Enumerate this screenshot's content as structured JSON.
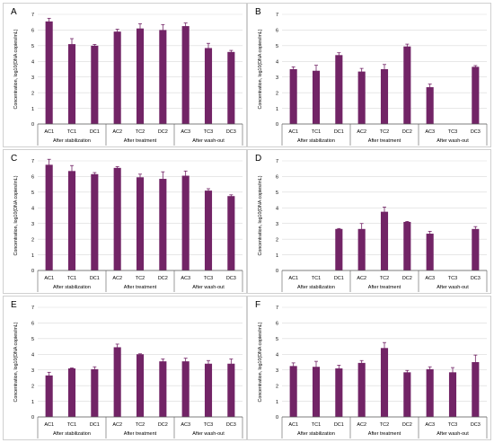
{
  "colors": {
    "bar": "#722466",
    "grid": "#d9d9d9",
    "axis": "#595959",
    "text": "#000000",
    "panel_border": "#d0d0d0"
  },
  "chart_data": [
    {
      "panel_label": "A",
      "type": "bar",
      "categories": [
        "AC1",
        "TC1",
        "DC1",
        "AC2",
        "TC2",
        "DC2",
        "AC3",
        "TC3",
        "DC3"
      ],
      "values": [
        6.55,
        5.1,
        5.0,
        5.9,
        6.1,
        6.0,
        6.25,
        4.85,
        4.6
      ],
      "errors": [
        0.2,
        0.35,
        0.08,
        0.15,
        0.3,
        0.35,
        0.2,
        0.3,
        0.1
      ],
      "groups": [
        "After stabilization",
        "After treatment",
        "After wash-out"
      ],
      "ylabel": "Concentration, log10(DNA copies/mL)",
      "ylim": [
        0,
        7
      ],
      "yticks": [
        0,
        1,
        2,
        3,
        4,
        5,
        6,
        7
      ],
      "grid": true,
      "legend": "none"
    },
    {
      "panel_label": "B",
      "type": "bar",
      "categories": [
        "AC1",
        "TC1",
        "DC1",
        "AC2",
        "TC2",
        "DC2",
        "AC3",
        "TC3",
        "DC3"
      ],
      "values": [
        3.5,
        3.4,
        4.4,
        3.35,
        3.5,
        4.95,
        2.35,
        null,
        3.65
      ],
      "errors": [
        0.15,
        0.35,
        0.15,
        0.2,
        0.3,
        0.15,
        0.2,
        null,
        0.08
      ],
      "groups": [
        "After stabilization",
        "After treatment",
        "After wash-out"
      ],
      "ylabel": "Concentration, log10(DNA copies/mL)",
      "ylim": [
        0,
        7
      ],
      "yticks": [
        0,
        1,
        2,
        3,
        4,
        5,
        6,
        7
      ],
      "grid": true,
      "legend": "none"
    },
    {
      "panel_label": "C",
      "type": "bar",
      "categories": [
        "AC1",
        "TC1",
        "DC1",
        "AC2",
        "TC2",
        "DC2",
        "AC3",
        "TC3",
        "DC3"
      ],
      "values": [
        6.75,
        6.35,
        6.15,
        6.55,
        5.95,
        5.85,
        6.05,
        5.1,
        4.75
      ],
      "errors": [
        0.35,
        0.35,
        0.1,
        0.08,
        0.2,
        0.45,
        0.3,
        0.12,
        0.08
      ],
      "groups": [
        "After stabilization",
        "After treatment",
        "After wash-out"
      ],
      "ylabel": "Concentration, log10(DNA copies/mL)",
      "ylim": [
        0,
        7
      ],
      "yticks": [
        0,
        1,
        2,
        3,
        4,
        5,
        6,
        7
      ],
      "grid": true,
      "legend": "none"
    },
    {
      "panel_label": "D",
      "type": "bar",
      "categories": [
        "AC1",
        "TC1",
        "DC1",
        "AC2",
        "TC2",
        "DC2",
        "AC3",
        "TC3",
        "DC3"
      ],
      "values": [
        null,
        null,
        2.65,
        2.65,
        3.75,
        3.1,
        2.35,
        null,
        2.65
      ],
      "errors": [
        null,
        null,
        0.03,
        0.35,
        0.3,
        0.03,
        0.15,
        null,
        0.15
      ],
      "groups": [
        "After stabilization",
        "After treatment",
        "After wash-out"
      ],
      "ylabel": "Concentration, log10(DNA copies/mL)",
      "ylim": [
        0,
        7
      ],
      "yticks": [
        0,
        1,
        2,
        3,
        4,
        5,
        6,
        7
      ],
      "grid": true,
      "legend": "none"
    },
    {
      "panel_label": "E",
      "type": "bar",
      "categories": [
        "AC1",
        "TC1",
        "DC1",
        "AC2",
        "TC2",
        "DC2",
        "AC3",
        "TC3",
        "DC3"
      ],
      "values": [
        2.65,
        3.1,
        3.05,
        4.45,
        4.0,
        3.55,
        3.55,
        3.4,
        3.4
      ],
      "errors": [
        0.2,
        0.03,
        0.15,
        0.2,
        0.03,
        0.15,
        0.2,
        0.2,
        0.3
      ],
      "groups": [
        "After stabilization",
        "After treatment",
        "After wash-out"
      ],
      "ylabel": "Concentration, log10(DNA copies/mL)",
      "ylim": [
        0,
        7
      ],
      "yticks": [
        0,
        1,
        2,
        3,
        4,
        5,
        6,
        7
      ],
      "grid": true,
      "legend": "none"
    },
    {
      "panel_label": "F",
      "type": "bar",
      "categories": [
        "AC1",
        "TC1",
        "DC1",
        "AC2",
        "TC2",
        "DC2",
        "AC3",
        "TC3",
        "DC3"
      ],
      "values": [
        3.25,
        3.2,
        3.1,
        3.45,
        4.4,
        2.85,
        3.05,
        2.85,
        3.5
      ],
      "errors": [
        0.2,
        0.35,
        0.2,
        0.15,
        0.35,
        0.12,
        0.15,
        0.3,
        0.45
      ],
      "groups": [
        "After stabilization",
        "After treatment",
        "After wash-out"
      ],
      "ylabel": "Concentration, log10(DNA copies/mL)",
      "ylim": [
        0,
        7
      ],
      "yticks": [
        0,
        1,
        2,
        3,
        4,
        5,
        6,
        7
      ],
      "grid": true,
      "legend": "none"
    }
  ]
}
